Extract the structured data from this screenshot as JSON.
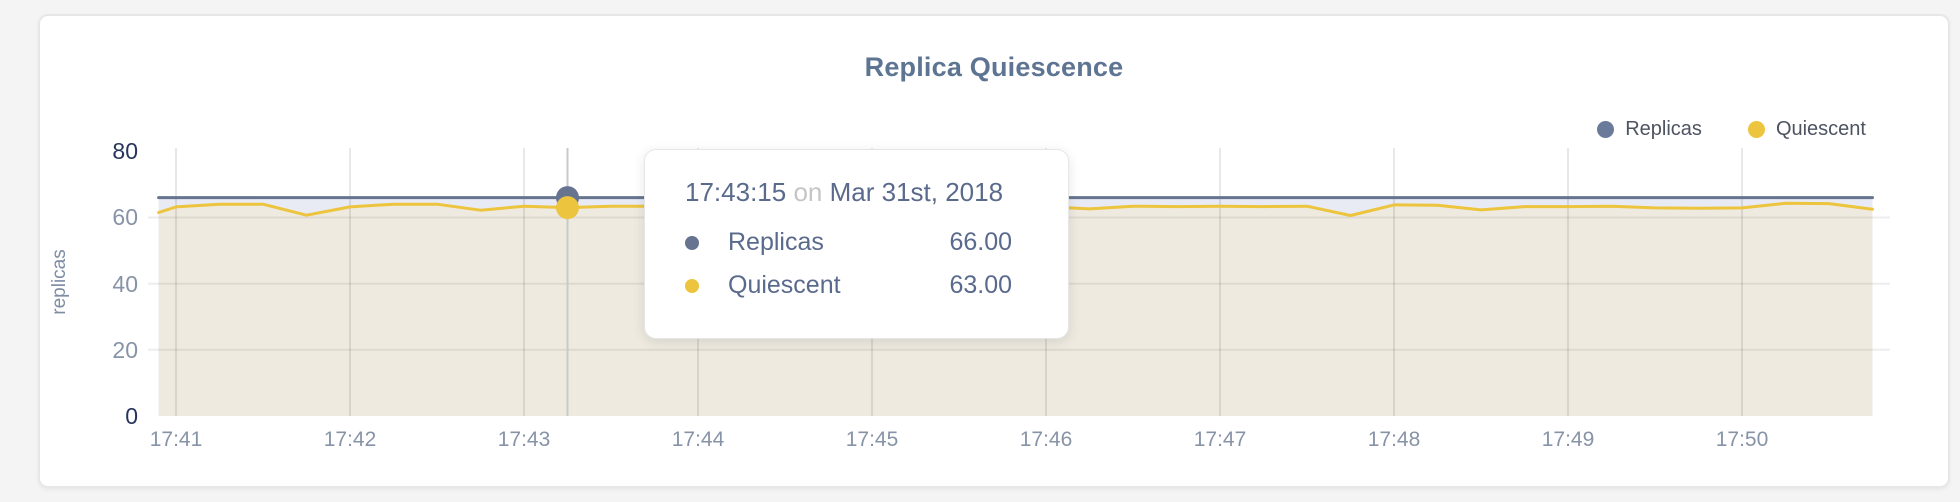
{
  "chart": {
    "title": "Replica Quiescence",
    "ylabel": "replicas"
  },
  "legend": [
    {
      "label": "Replicas",
      "color": "#6a7a9b"
    },
    {
      "label": "Quiescent",
      "color": "#ecc43d"
    }
  ],
  "tooltip": {
    "time": "17:43:15",
    "connector": "on",
    "date": "Mar 31st, 2018",
    "rows": [
      {
        "label": "Replicas",
        "value": "66.00",
        "color": "#66748f"
      },
      {
        "label": "Quiescent",
        "value": "63.00",
        "color": "#ecc43d"
      }
    ]
  },
  "chart_data": {
    "type": "line",
    "title": "Replica Quiescence",
    "xlabel": "",
    "ylabel": "replicas",
    "ylim": [
      0,
      81
    ],
    "y_ticks": [
      0,
      20,
      40,
      60,
      80
    ],
    "x_ticks": [
      "17:41",
      "17:42",
      "17:43",
      "17:44",
      "17:45",
      "17:46",
      "17:47",
      "17:48",
      "17:49",
      "17:50"
    ],
    "grid": true,
    "legend_position": "top-right",
    "x": [
      "17:40:54",
      "17:41:00",
      "17:41:15",
      "17:41:30",
      "17:41:45",
      "17:42:00",
      "17:42:15",
      "17:42:30",
      "17:42:45",
      "17:43:00",
      "17:43:15",
      "17:43:30",
      "17:43:45",
      "17:44:00",
      "17:44:15",
      "17:44:30",
      "17:44:45",
      "17:45:00",
      "17:45:15",
      "17:45:30",
      "17:45:45",
      "17:46:00",
      "17:46:15",
      "17:46:30",
      "17:46:45",
      "17:47:00",
      "17:47:15",
      "17:47:30",
      "17:47:45",
      "17:48:00",
      "17:48:15",
      "17:48:30",
      "17:48:45",
      "17:49:00",
      "17:49:15",
      "17:49:30",
      "17:49:45",
      "17:50:00",
      "17:50:15",
      "17:50:30",
      "17:50:45"
    ],
    "series": [
      {
        "name": "Replicas",
        "color": "#66748f",
        "fill": "#e8ebf3",
        "values": [
          66,
          66,
          66,
          66,
          66,
          66,
          66,
          66,
          66,
          66,
          66,
          66,
          66,
          66,
          66,
          66,
          66,
          66,
          66,
          66,
          66,
          66,
          66,
          66,
          66,
          66,
          66,
          66,
          66,
          66,
          66,
          66,
          66,
          66,
          66,
          66,
          66,
          66,
          66,
          66,
          66
        ]
      },
      {
        "name": "Quiescent",
        "color": "#ecc43d",
        "fill": "#eeeae0",
        "values": [
          61.5,
          63.2,
          64,
          64,
          60.7,
          63.2,
          64,
          64,
          62.2,
          63.4,
          63,
          63.4,
          63.4,
          63.2,
          63.5,
          63.2,
          63.4,
          63.3,
          63.5,
          63.2,
          63.4,
          63.3,
          62.6,
          63.4,
          63.3,
          63.4,
          63.3,
          63.4,
          60.6,
          63.8,
          63.7,
          62.3,
          63.3,
          63.3,
          63.4,
          62.9,
          62.8,
          62.9,
          64.3,
          64.2,
          62.5
        ]
      }
    ],
    "highlight": {
      "time": "17:43:15",
      "values": [
        66,
        63
      ]
    }
  }
}
